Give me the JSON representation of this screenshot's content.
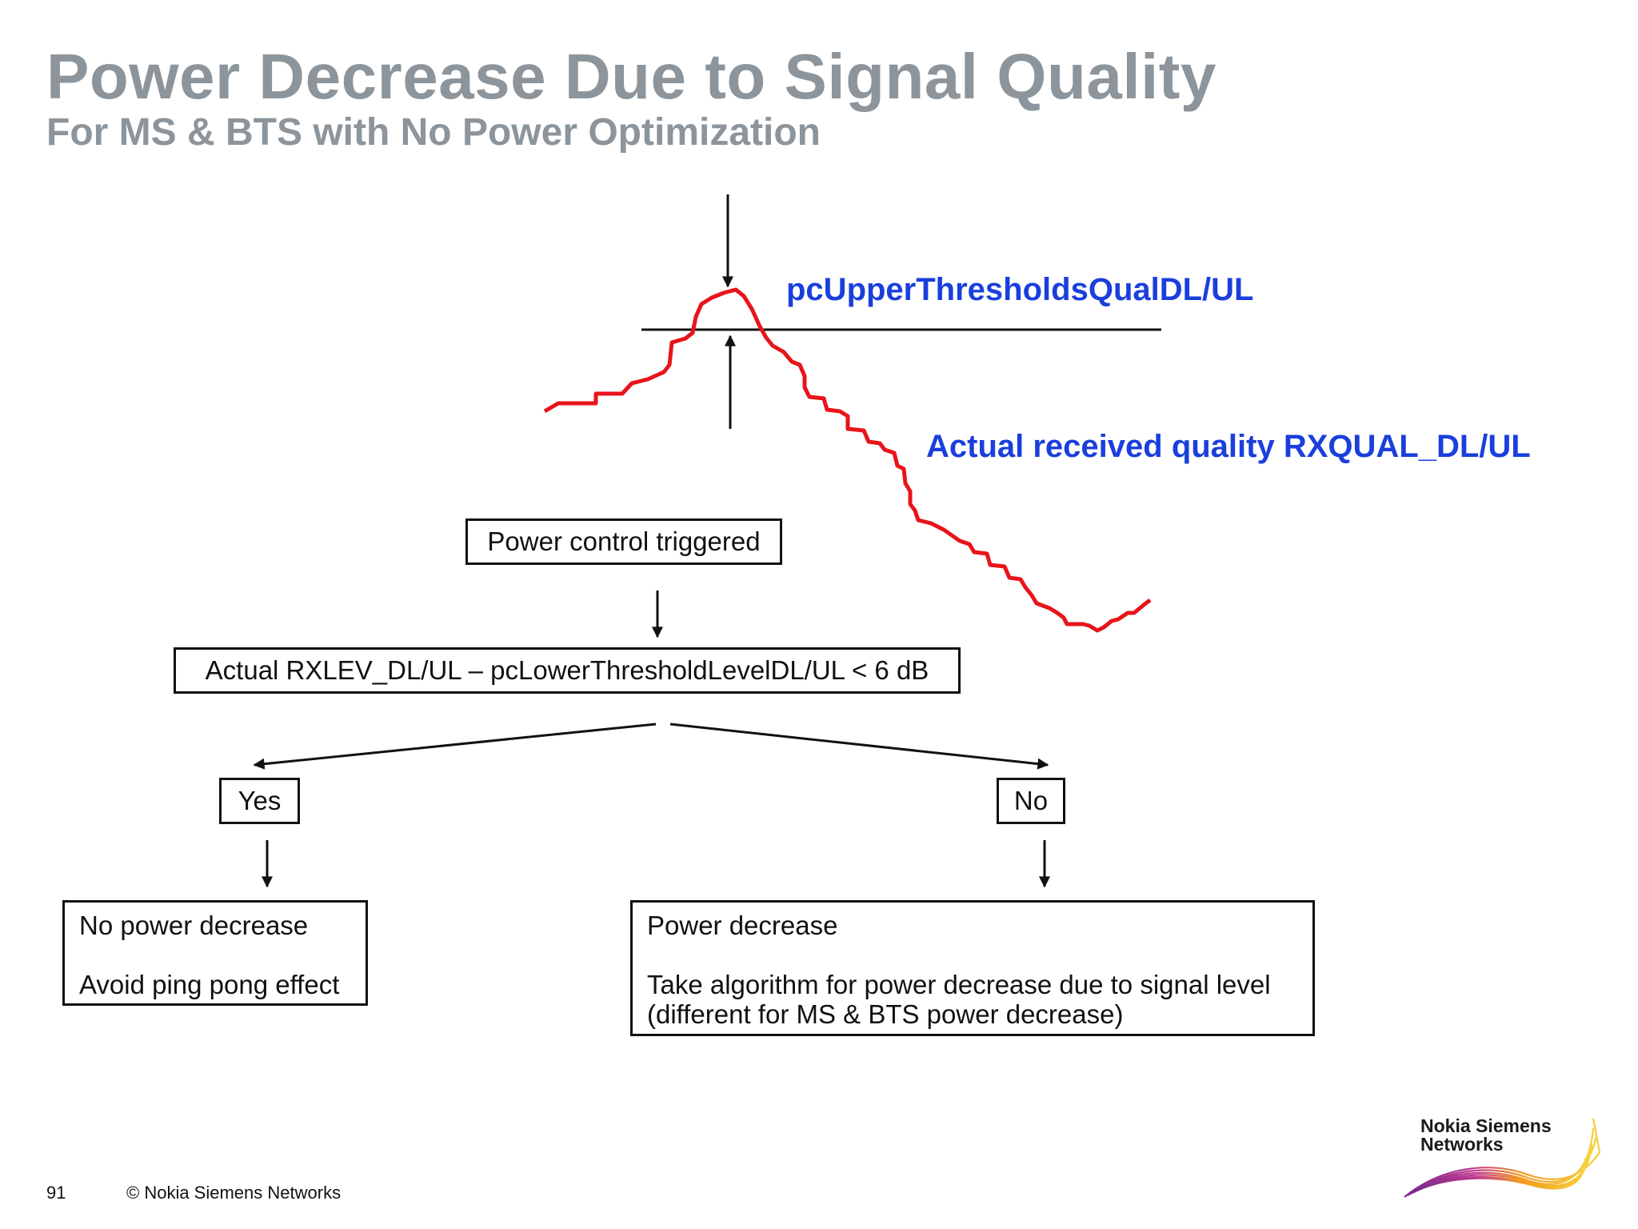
{
  "slide": {
    "title": "Power Decrease Due to Signal Quality",
    "subtitle": "For MS & BTS with No Power Optimization",
    "page_number": "91",
    "copyright": "© Nokia Siemens Networks"
  },
  "graph": {
    "threshold_label": "pcUpperThresholdsQualDL/UL",
    "curve_label": "Actual received quality RXQUAL_DL/UL",
    "curve_color": "#e8141b",
    "label_color": "#1a3fdc"
  },
  "flow": {
    "trigger": "Power control triggered",
    "condition": "Actual RXLEV_DL/UL – pcLowerThresholdLevelDL/UL < 6 dB",
    "yes": "Yes",
    "no": "No",
    "yes_result_line1": "No power decrease",
    "yes_result_line2": "Avoid ping pong effect",
    "no_result_line1": "Power decrease",
    "no_result_line2": "Take algorithm for power decrease due to signal level",
    "no_result_line3": "(different for MS & BTS power decrease)"
  },
  "logo": {
    "line1": "Nokia Siemens",
    "line2": "Networks"
  }
}
